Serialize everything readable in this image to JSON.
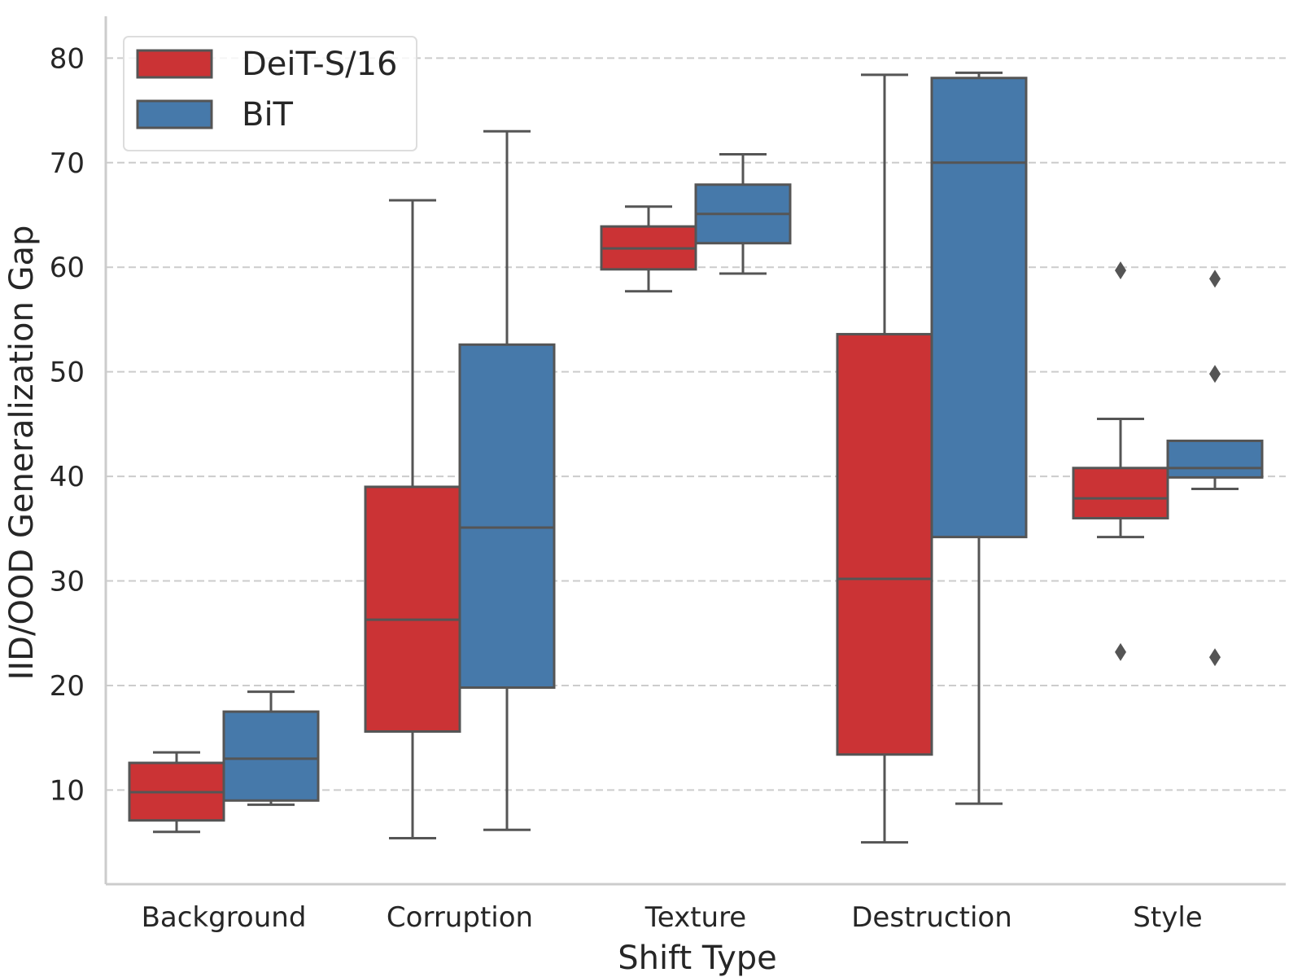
{
  "chart_data": {
    "type": "box",
    "title": "",
    "xlabel": "Shift Type",
    "ylabel": "IID/OOD Generalization Gap",
    "categories": [
      "Background",
      "Corruption",
      "Texture",
      "Destruction",
      "Style"
    ],
    "ylim": [
      1,
      84
    ],
    "yticks": [
      10,
      20,
      30,
      40,
      50,
      60,
      70,
      80
    ],
    "grid": "y-dashed",
    "legend": "top-left",
    "series": [
      {
        "name": "DeiT-S/16",
        "color": "#cb3335",
        "boxes": [
          {
            "whislo": 6.0,
            "q1": 7.1,
            "med": 9.8,
            "q3": 12.6,
            "whishi": 13.6,
            "fliers": []
          },
          {
            "whislo": 5.4,
            "q1": 15.6,
            "med": 26.3,
            "q3": 39.0,
            "whishi": 66.4,
            "fliers": []
          },
          {
            "whislo": 57.7,
            "q1": 59.8,
            "med": 61.8,
            "q3": 63.9,
            "whishi": 65.8,
            "fliers": []
          },
          {
            "whislo": 5.0,
            "q1": 13.4,
            "med": 30.2,
            "q3": 53.6,
            "whishi": 78.4,
            "fliers": []
          },
          {
            "whislo": 34.2,
            "q1": 36.0,
            "med": 37.9,
            "q3": 40.8,
            "whishi": 45.5,
            "fliers": [
              59.7,
              23.2
            ]
          }
        ]
      },
      {
        "name": "BiT",
        "color": "#4679aa",
        "boxes": [
          {
            "whislo": 8.6,
            "q1": 9.0,
            "med": 13.0,
            "q3": 17.5,
            "whishi": 19.4,
            "fliers": []
          },
          {
            "whislo": 6.2,
            "q1": 19.8,
            "med": 35.1,
            "q3": 52.6,
            "whishi": 73.0,
            "fliers": []
          },
          {
            "whislo": 59.4,
            "q1": 62.3,
            "med": 65.1,
            "q3": 67.9,
            "whishi": 70.8,
            "fliers": []
          },
          {
            "whislo": 8.7,
            "q1": 34.2,
            "med": 70.0,
            "q3": 78.1,
            "whishi": 78.6,
            "fliers": []
          },
          {
            "whislo": 38.8,
            "q1": 39.9,
            "med": 40.8,
            "q3": 43.4,
            "whishi": 43.4,
            "fliers": [
              58.9,
              49.8,
              22.7
            ]
          }
        ]
      }
    ]
  }
}
